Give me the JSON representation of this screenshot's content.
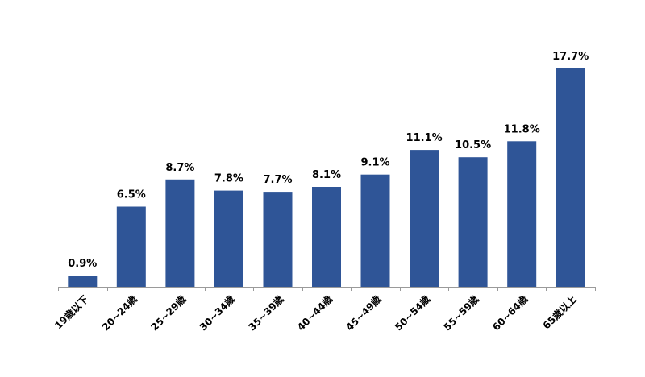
{
  "chart_data": {
    "type": "bar",
    "categories": [
      "19歳以下",
      "20~24歳",
      "25~29歳",
      "30~34歳",
      "35~39歳",
      "40~44歳",
      "45~49歳",
      "50~54歳",
      "55~59歳",
      "60~64歳",
      "65歳以上"
    ],
    "values": [
      0.9,
      6.5,
      8.7,
      7.8,
      7.7,
      8.1,
      9.1,
      11.1,
      10.5,
      11.8,
      17.7
    ],
    "value_labels": [
      "0.9%",
      "6.5%",
      "8.7%",
      "7.8%",
      "7.7%",
      "8.1%",
      "9.1%",
      "11.1%",
      "10.5%",
      "11.8%",
      "17.7%"
    ],
    "ylim": [
      0,
      17.7
    ],
    "grid": false,
    "legend": "none",
    "bar_color": "#2f5597"
  }
}
